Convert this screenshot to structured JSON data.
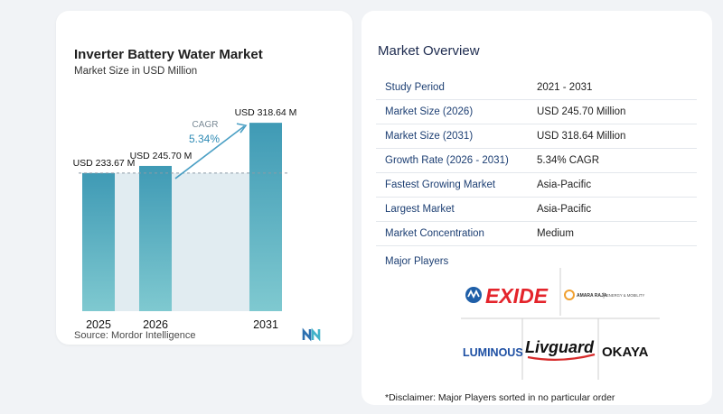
{
  "chart": {
    "title": "Inverter Battery Water Market",
    "subtitle": "Market Size in USD Million",
    "source": "Source: Mordor Intelligence",
    "cagr_label": "CAGR",
    "cagr_value": "5.34%",
    "colors": {
      "bar_dark": "#3f9ab5",
      "bar_light": "#7fc9d0",
      "shade": "#e1ecf1",
      "arrow": "#4a9fc4"
    }
  },
  "chart_data": {
    "type": "bar",
    "categories": [
      "2025",
      "2026",
      "2031"
    ],
    "values": [
      233.67,
      245.7,
      318.64
    ],
    "data_labels": [
      "USD 233.67 M",
      "USD 245.70 M",
      "USD 318.64 M"
    ],
    "ylim": [
      0,
      330
    ],
    "grid": false
  },
  "overview": {
    "title": "Market Overview",
    "rows": [
      {
        "key": "Study Period",
        "value": "2021 - 2031"
      },
      {
        "key": "Market Size (2026)",
        "value": "USD 245.70 Million"
      },
      {
        "key": "Market Size (2031)",
        "value": "USD 318.64 Million"
      },
      {
        "key": "Growth Rate (2026 - 2031)",
        "value": "5.34% CAGR"
      },
      {
        "key": "Fastest Growing Market",
        "value": "Asia-Pacific"
      },
      {
        "key": "Largest Market",
        "value": "Asia-Pacific"
      },
      {
        "key": "Market Concentration",
        "value": "Medium"
      }
    ],
    "major_players_label": "Major Players",
    "players": {
      "exide": "EXIDE",
      "amara_raja": "AMARA RAJA",
      "amara_raja_tag": "ENERGY & MOBILITY",
      "luminous": "LUMINOUS",
      "livguard": "Livguard",
      "okaya": "OKAYA"
    },
    "disclaimer": "*Disclaimer: Major Players sorted in no particular order"
  }
}
